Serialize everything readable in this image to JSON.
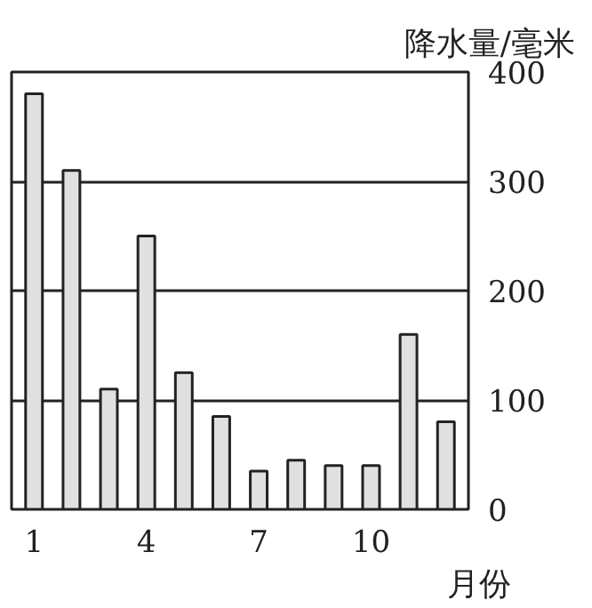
{
  "chart_data": {
    "type": "bar",
    "xlabel": "月份",
    "ylabel": "降水量/毫米",
    "categories": [
      "1",
      null,
      null,
      "4",
      null,
      null,
      "7",
      null,
      null,
      "10",
      null,
      null
    ],
    "values": [
      380,
      310,
      110,
      250,
      125,
      85,
      35,
      45,
      40,
      40,
      160,
      80
    ],
    "color": "#e0e0e0",
    "ylim": [
      0,
      400
    ],
    "yticks": [
      0,
      100,
      200,
      300,
      400
    ],
    "grid": "y"
  }
}
